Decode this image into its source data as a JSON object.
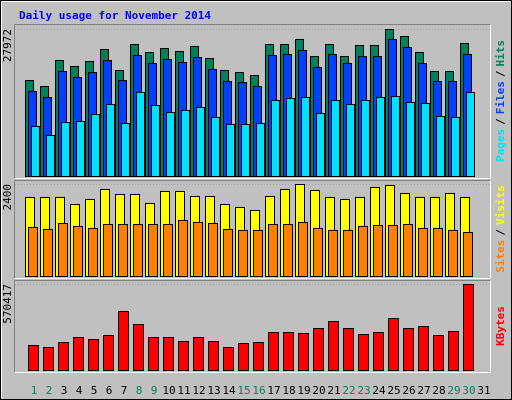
{
  "chart_data": [
    {
      "type": "bar",
      "title": "Daily usage for November 2014",
      "legend_separator": "/",
      "series": [
        {
          "name": "Hits",
          "color": "#00805c",
          "values": [
            18269,
            17127,
            22075,
            20933,
            21884,
            24168,
            20171,
            25119,
            23597,
            24358,
            23787,
            24739,
            22455,
            20171,
            19791,
            19220,
            25119,
            25119,
            26070,
            22836,
            25119,
            22836,
            24929,
            24929,
            27972,
            26641,
            23597,
            19981,
            19981,
            25310,
            null
          ]
        },
        {
          "name": "Files",
          "color": "#0040ff",
          "values": [
            16176,
            15034,
            19982,
            18840,
            19791,
            22075,
            18269,
            23026,
            21504,
            22265,
            21694,
            22646,
            20362,
            18079,
            17888,
            17127,
            23026,
            23217,
            23978,
            20743,
            23217,
            21504,
            22836,
            22836,
            26071,
            24549,
            21504,
            18079,
            18079,
            23217,
            null
          ]
        },
        {
          "name": "Pages",
          "color": "#00e0ff",
          "values": [
            9515,
            7802,
            10276,
            10467,
            11799,
            13702,
            10086,
            15985,
            13511,
            12179,
            12560,
            13131,
            11228,
            9896,
            9896,
            10086,
            14463,
            14843,
            15034,
            11989,
            14463,
            13702,
            14463,
            15034,
            15224,
            14082,
            13892,
            11418,
            11228,
            15985,
            null
          ]
        }
      ],
      "ylim": [
        0,
        27972
      ],
      "yticks": [
        27972
      ]
    },
    {
      "type": "bar",
      "legend_separator": "/",
      "series": [
        {
          "name": "Visits",
          "color": "#ffff00",
          "values": [
            2062,
            2062,
            2062,
            1879,
            2010,
            2271,
            2140,
            2140,
            1905,
            2219,
            2219,
            2088,
            2088,
            1879,
            1801,
            1723,
            2088,
            2271,
            2400,
            2245,
            2062,
            2010,
            2062,
            2323,
            2375,
            2166,
            2062,
            2062,
            2166,
            2062,
            null
          ]
        },
        {
          "name": "Sites",
          "color": "#ff8000",
          "values": [
            1279,
            1227,
            1383,
            1305,
            1253,
            1357,
            1357,
            1357,
            1357,
            1357,
            1462,
            1409,
            1383,
            1227,
            1201,
            1201,
            1357,
            1357,
            1409,
            1253,
            1201,
            1201,
            1305,
            1331,
            1331,
            1357,
            1253,
            1253,
            1201,
            1148,
            null
          ]
        }
      ],
      "ylim": [
        0,
        2400
      ],
      "yticks": [
        2400
      ]
    },
    {
      "type": "bar",
      "categories": [
        "1",
        "2",
        "3",
        "4",
        "5",
        "6",
        "7",
        "8",
        "9",
        "10",
        "11",
        "12",
        "13",
        "14",
        "15",
        "16",
        "17",
        "18",
        "19",
        "20",
        "21",
        "22",
        "23",
        "24",
        "25",
        "26",
        "27",
        "28",
        "29",
        "30",
        "31"
      ],
      "category_colors": [
        "#00805c",
        "#00805c",
        "#000000",
        "#000000",
        "#000000",
        "#000000",
        "#000000",
        "#00805c",
        "#00805c",
        "#000000",
        "#000000",
        "#000000",
        "#000000",
        "#000000",
        "#00805c",
        "#00805c",
        "#000000",
        "#000000",
        "#000000",
        "#000000",
        "#000000",
        "#00805c",
        "#00805c",
        "#000000",
        "#000000",
        "#000000",
        "#000000",
        "#000000",
        "#00805c",
        "#00805c",
        "#000000"
      ],
      "series": [
        {
          "name": "KBytes",
          "color": "#ff0000",
          "values": [
            165825,
            152559,
            185724,
            218889,
            205623,
            232155,
            391347,
            305118,
            218889,
            218889,
            192357,
            218889,
            192357,
            152559,
            179091,
            185724,
            252054,
            252054,
            245421,
            278586,
            325017,
            278586,
            238788,
            252054,
            344916,
            278586,
            291852,
            232155,
            258687,
            570417,
            null
          ]
        }
      ],
      "ylim": [
        0,
        570417
      ],
      "yticks": [
        570417
      ]
    }
  ]
}
